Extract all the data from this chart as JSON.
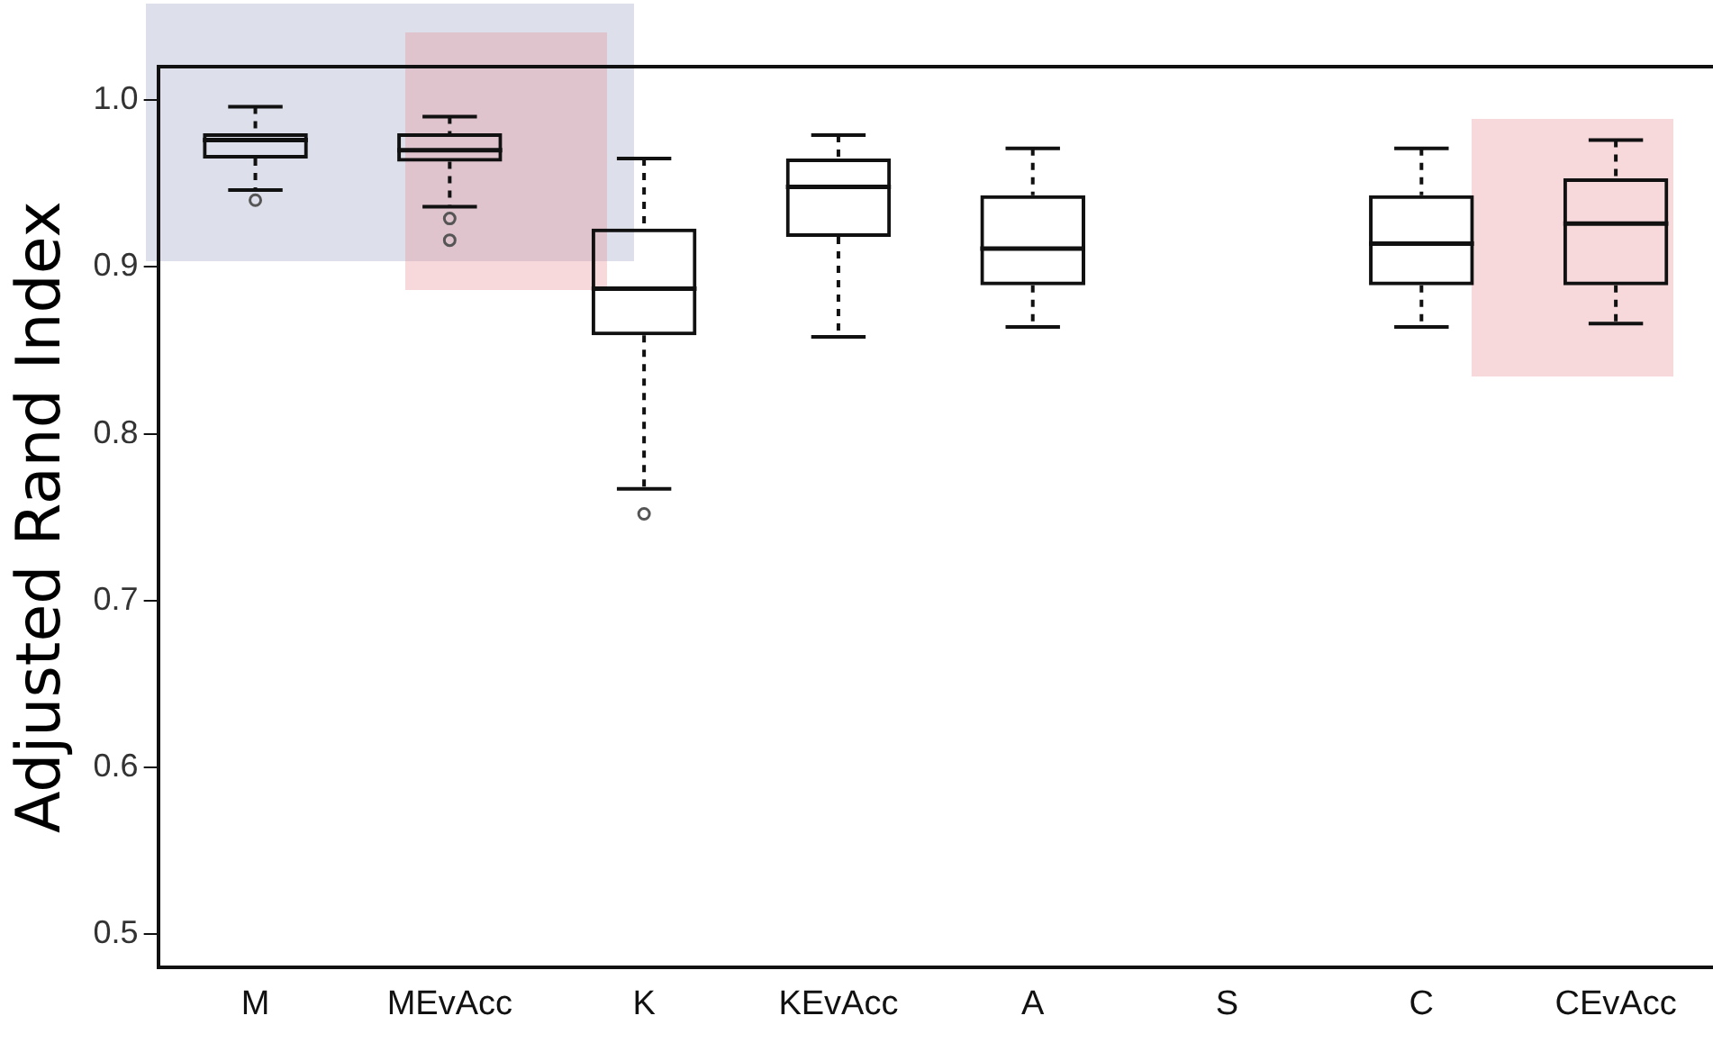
{
  "chart_data": {
    "type": "box",
    "ylabel": "Adjusted Rand Index",
    "categories": [
      "M",
      "MEvAcc",
      "K",
      "KEvAcc",
      "A",
      "S",
      "C",
      "CEvAcc"
    ],
    "boxes": [
      {
        "low": 0.946,
        "q1": 0.965,
        "median": 0.976,
        "q3": 0.98,
        "high": 0.996,
        "outliers": [
          0.94
        ]
      },
      {
        "low": 0.936,
        "q1": 0.963,
        "median": 0.97,
        "q3": 0.98,
        "high": 0.99,
        "outliers": [
          0.929,
          0.916
        ]
      },
      {
        "low": 0.767,
        "q1": 0.859,
        "median": 0.887,
        "q3": 0.923,
        "high": 0.965,
        "outliers": [
          0.752
        ]
      },
      {
        "low": 0.858,
        "q1": 0.918,
        "median": 0.948,
        "q3": 0.965,
        "high": 0.979
      },
      {
        "low": 0.864,
        "q1": 0.889,
        "median": 0.911,
        "q3": 0.943,
        "high": 0.971
      },
      null,
      {
        "low": 0.864,
        "q1": 0.889,
        "median": 0.914,
        "q3": 0.943,
        "high": 0.971
      },
      {
        "low": 0.866,
        "q1": 0.889,
        "median": 0.926,
        "q3": 0.953,
        "high": 0.976
      }
    ],
    "ylim": [
      0.48,
      1.02
    ],
    "yticks": [
      {
        "value": 0.5,
        "label": "0.5"
      },
      {
        "value": 0.6,
        "label": "0.6"
      },
      {
        "value": 0.7,
        "label": "0.7"
      },
      {
        "value": 0.8,
        "label": "0.8"
      },
      {
        "value": 0.9,
        "label": "0.9"
      },
      {
        "value": 1.0,
        "label": "1.0"
      }
    ],
    "grid": false,
    "legend": false
  }
}
